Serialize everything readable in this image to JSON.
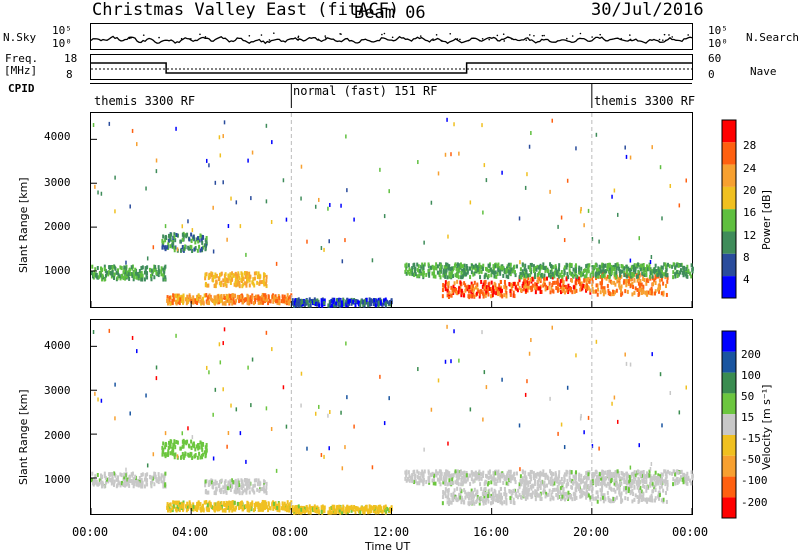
{
  "header": {
    "station": "Christmas Valley East (fitACF)",
    "beam": "Beam 06",
    "date": "30/Jul/2016"
  },
  "summary_panel": {
    "left_label_sky": "N.Sky",
    "left_label_freq_top": "Freq.",
    "left_label_freq_unit": "[MHz]",
    "left_label_cpid": "CPID",
    "right_label_search": "N.Search",
    "right_label_nave": "Nave",
    "noise_tick_top": "10^5",
    "noise_tick_bottom": "10^0",
    "noise_tick_top_r": "10^5",
    "noise_tick_bottom_r": "10^0",
    "freq_tick_top": "18",
    "freq_tick_bottom": "8",
    "nave_tick_top": "60",
    "nave_tick_bottom": "0"
  },
  "cpid_segments": [
    {
      "label": "themis 3300 RF",
      "start_hour": 0
    },
    {
      "label": "normal (fast) 151 RF",
      "start_hour": 8
    },
    {
      "label": "themis 3300 RF",
      "start_hour": 20
    }
  ],
  "time_axis": {
    "label": "Time UT",
    "ticks": [
      "00:00",
      "04:00",
      "08:00",
      "12:00",
      "16:00",
      "20:00",
      "00:00"
    ]
  },
  "power_panel": {
    "ylabel": "Slant Range [km]",
    "yticks": [
      "1000",
      "2000",
      "3000",
      "4000"
    ],
    "colorbar_label": "Power [dB]",
    "colorbar_ticks": [
      "4",
      "8",
      "12",
      "16",
      "20",
      "24",
      "28"
    ],
    "colors": [
      "#0000ff",
      "#2a4c9c",
      "#3f8c5a",
      "#5fbf3f",
      "#f0c020",
      "#f7a030",
      "#ff6010",
      "#ff0000"
    ]
  },
  "velocity_panel": {
    "ylabel": "Slant Range [km]",
    "yticks": [
      "1000",
      "2000",
      "3000",
      "4000"
    ],
    "colorbar_label": "Velocity [m s^-1]",
    "colorbar_ticks": [
      "200",
      "100",
      "50",
      "15",
      "-15",
      "-50",
      "-100",
      "-200"
    ],
    "colors": [
      "#0000ff",
      "#1a55a0",
      "#3a8c50",
      "#6cc63f",
      "#c8c8c8",
      "#f0c020",
      "#f7a030",
      "#ff6010",
      "#ff0000"
    ]
  },
  "chart_data": {
    "type": "heatmap",
    "x_range_hours": [
      0,
      24
    ],
    "y_range_km": [
      180,
      4600
    ],
    "scatter_regions": [
      {
        "t0": 0.0,
        "t1": 3.0,
        "r0": 850,
        "r1": 1150,
        "power": 14,
        "vel": "grey"
      },
      {
        "t0": 2.8,
        "t1": 4.6,
        "r0": 1500,
        "r1": 1900,
        "power": 12,
        "vel": "green"
      },
      {
        "t0": 3.0,
        "t1": 5.5,
        "r0": 300,
        "r1": 500,
        "power": 24,
        "vel": "yellow"
      },
      {
        "t0": 4.5,
        "t1": 7.0,
        "r0": 700,
        "r1": 1000,
        "power": 22,
        "vel": "grey"
      },
      {
        "t0": 5.5,
        "t1": 8.0,
        "r0": 300,
        "r1": 500,
        "power": 26,
        "vel": "yellow"
      },
      {
        "t0": 8.0,
        "t1": 12.0,
        "r0": 250,
        "r1": 400,
        "power": 8,
        "vel": "yellow"
      },
      {
        "t0": 14.0,
        "t1": 17.0,
        "r0": 450,
        "r1": 800,
        "power": 28,
        "vel": "grey"
      },
      {
        "t0": 17.0,
        "t1": 20.0,
        "r0": 550,
        "r1": 900,
        "power": 28,
        "vel": "grey"
      },
      {
        "t0": 20.0,
        "t1": 23.0,
        "r0": 500,
        "r1": 1000,
        "power": 26,
        "vel": "grey"
      },
      {
        "t0": 12.5,
        "t1": 24.0,
        "r0": 900,
        "r1": 1200,
        "power": 14,
        "vel": "grey"
      }
    ]
  }
}
